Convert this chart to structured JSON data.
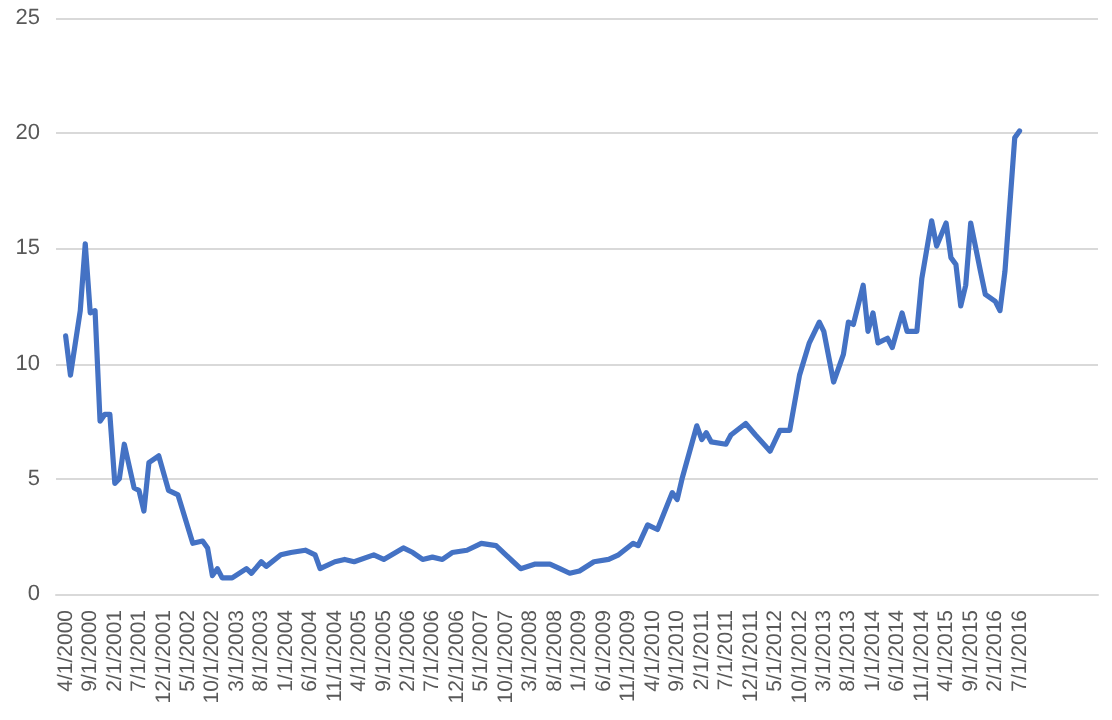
{
  "chart_data": {
    "type": "line",
    "marker": "none",
    "line_style": "solid",
    "grid": "y",
    "x": [
      "2000-04",
      "2000-05",
      "2000-07",
      "2000-08",
      "2000-09",
      "2000-10",
      "2000-11",
      "2000-12",
      "2001-01",
      "2001-02",
      "2001-03",
      "2001-04",
      "2001-06",
      "2001-07",
      "2001-08",
      "2001-09",
      "2001-11",
      "2002-01",
      "2002-03",
      "2002-06",
      "2002-08",
      "2002-09",
      "2002-10",
      "2002-11",
      "2002-12",
      "2003-02",
      "2003-05",
      "2003-06",
      "2003-08",
      "2003-09",
      "2003-12",
      "2004-02",
      "2004-05",
      "2004-07",
      "2004-08",
      "2004-11",
      "2005-01",
      "2005-03",
      "2005-07",
      "2005-09",
      "2006-01",
      "2006-03",
      "2006-05",
      "2006-07",
      "2006-09",
      "2006-11",
      "2007-02",
      "2007-05",
      "2007-08",
      "2007-10",
      "2008-01",
      "2008-04",
      "2008-07",
      "2008-09",
      "2008-11",
      "2009-01",
      "2009-04",
      "2009-07",
      "2009-09",
      "2009-12",
      "2010-01",
      "2010-03",
      "2010-05",
      "2010-08",
      "2010-09",
      "2010-10",
      "2011-01",
      "2011-02",
      "2011-03",
      "2011-04",
      "2011-07",
      "2011-08",
      "2011-11",
      "2012-01",
      "2012-04",
      "2012-06",
      "2012-08",
      "2012-10",
      "2012-12",
      "2013-02",
      "2013-03",
      "2013-05",
      "2013-07",
      "2013-08",
      "2013-09",
      "2013-11",
      "2013-12",
      "2014-01",
      "2014-02",
      "2014-04",
      "2014-05",
      "2014-07",
      "2014-08",
      "2014-10",
      "2014-11",
      "2015-01",
      "2015-02",
      "2015-04",
      "2015-05",
      "2015-06",
      "2015-07",
      "2015-08",
      "2015-09",
      "2015-11",
      "2015-12",
      "2016-02",
      "2016-03",
      "2016-04",
      "2016-06",
      "2016-07"
    ],
    "series": [
      {
        "color": "#4472c4",
        "values": [
          11.2,
          9.5,
          12.3,
          15.2,
          12.2,
          12.3,
          7.5,
          7.8,
          7.8,
          4.8,
          5.0,
          6.5,
          4.6,
          4.5,
          3.6,
          5.7,
          6.0,
          4.5,
          4.3,
          2.2,
          2.3,
          2.0,
          0.8,
          1.1,
          0.7,
          0.7,
          1.1,
          0.9,
          1.4,
          1.2,
          1.7,
          1.8,
          1.9,
          1.7,
          1.1,
          1.4,
          1.5,
          1.4,
          1.7,
          1.5,
          2.0,
          1.8,
          1.5,
          1.6,
          1.5,
          1.8,
          1.9,
          2.2,
          2.1,
          1.7,
          1.1,
          1.3,
          1.3,
          1.1,
          0.9,
          1.0,
          1.4,
          1.5,
          1.7,
          2.2,
          2.1,
          3.0,
          2.8,
          4.4,
          4.1,
          5.0,
          7.3,
          6.7,
          7.0,
          6.6,
          6.5,
          6.9,
          7.4,
          6.9,
          6.2,
          7.1,
          7.1,
          9.5,
          10.9,
          11.8,
          11.4,
          9.2,
          10.4,
          11.8,
          11.7,
          13.4,
          11.4,
          12.2,
          10.9,
          11.1,
          10.7,
          12.2,
          11.4,
          11.4,
          13.7,
          16.2,
          15.1,
          16.1,
          14.6,
          14.3,
          12.5,
          13.4,
          16.1,
          14.0,
          13.0,
          12.7,
          12.3,
          14.0,
          19.8,
          20.1
        ]
      }
    ],
    "xlim": [
      "2000-02",
      "2017-11"
    ],
    "xticks": [
      {
        "value": "2000-04",
        "label": "4/1/2000"
      },
      {
        "value": "2000-09",
        "label": "9/1/2000"
      },
      {
        "value": "2001-02",
        "label": "2/1/2001"
      },
      {
        "value": "2001-07",
        "label": "7/1/2001"
      },
      {
        "value": "2001-12",
        "label": "12/1/2001"
      },
      {
        "value": "2002-05",
        "label": "5/1/2002"
      },
      {
        "value": "2002-10",
        "label": "10/1/2002"
      },
      {
        "value": "2003-03",
        "label": "3/1/2003"
      },
      {
        "value": "2003-08",
        "label": "8/1/2003"
      },
      {
        "value": "2004-01",
        "label": "1/1/2004"
      },
      {
        "value": "2004-06",
        "label": "6/1/2004"
      },
      {
        "value": "2004-11",
        "label": "11/1/2004"
      },
      {
        "value": "2005-04",
        "label": "4/1/2005"
      },
      {
        "value": "2005-09",
        "label": "9/1/2005"
      },
      {
        "value": "2006-02",
        "label": "2/1/2006"
      },
      {
        "value": "2006-07",
        "label": "7/1/2006"
      },
      {
        "value": "2006-12",
        "label": "12/1/2006"
      },
      {
        "value": "2007-05",
        "label": "5/1/2007"
      },
      {
        "value": "2007-10",
        "label": "10/1/2007"
      },
      {
        "value": "2008-03",
        "label": "3/1/2008"
      },
      {
        "value": "2008-08",
        "label": "8/1/2008"
      },
      {
        "value": "2009-01",
        "label": "1/1/2009"
      },
      {
        "value": "2009-06",
        "label": "6/1/2009"
      },
      {
        "value": "2009-11",
        "label": "11/1/2009"
      },
      {
        "value": "2010-04",
        "label": "4/1/2010"
      },
      {
        "value": "2010-09",
        "label": "9/1/2010"
      },
      {
        "value": "2011-02",
        "label": "2/1/2011"
      },
      {
        "value": "2011-07",
        "label": "7/1/2011"
      },
      {
        "value": "2011-12",
        "label": "12/1/2011"
      },
      {
        "value": "2012-05",
        "label": "5/1/2012"
      },
      {
        "value": "2012-10",
        "label": "10/1/2012"
      },
      {
        "value": "2013-03",
        "label": "3/1/2013"
      },
      {
        "value": "2013-08",
        "label": "8/1/2013"
      },
      {
        "value": "2014-01",
        "label": "1/1/2014"
      },
      {
        "value": "2014-06",
        "label": "6/1/2014"
      },
      {
        "value": "2014-11",
        "label": "11/1/2014"
      },
      {
        "value": "2015-04",
        "label": "4/1/2015"
      },
      {
        "value": "2015-09",
        "label": "9/1/2015"
      },
      {
        "value": "2016-02",
        "label": "2/1/2016"
      },
      {
        "value": "2016-07",
        "label": "7/1/2016"
      }
    ],
    "ylim": [
      0,
      25
    ],
    "yticks": [
      0,
      5,
      10,
      15,
      20,
      25
    ]
  }
}
